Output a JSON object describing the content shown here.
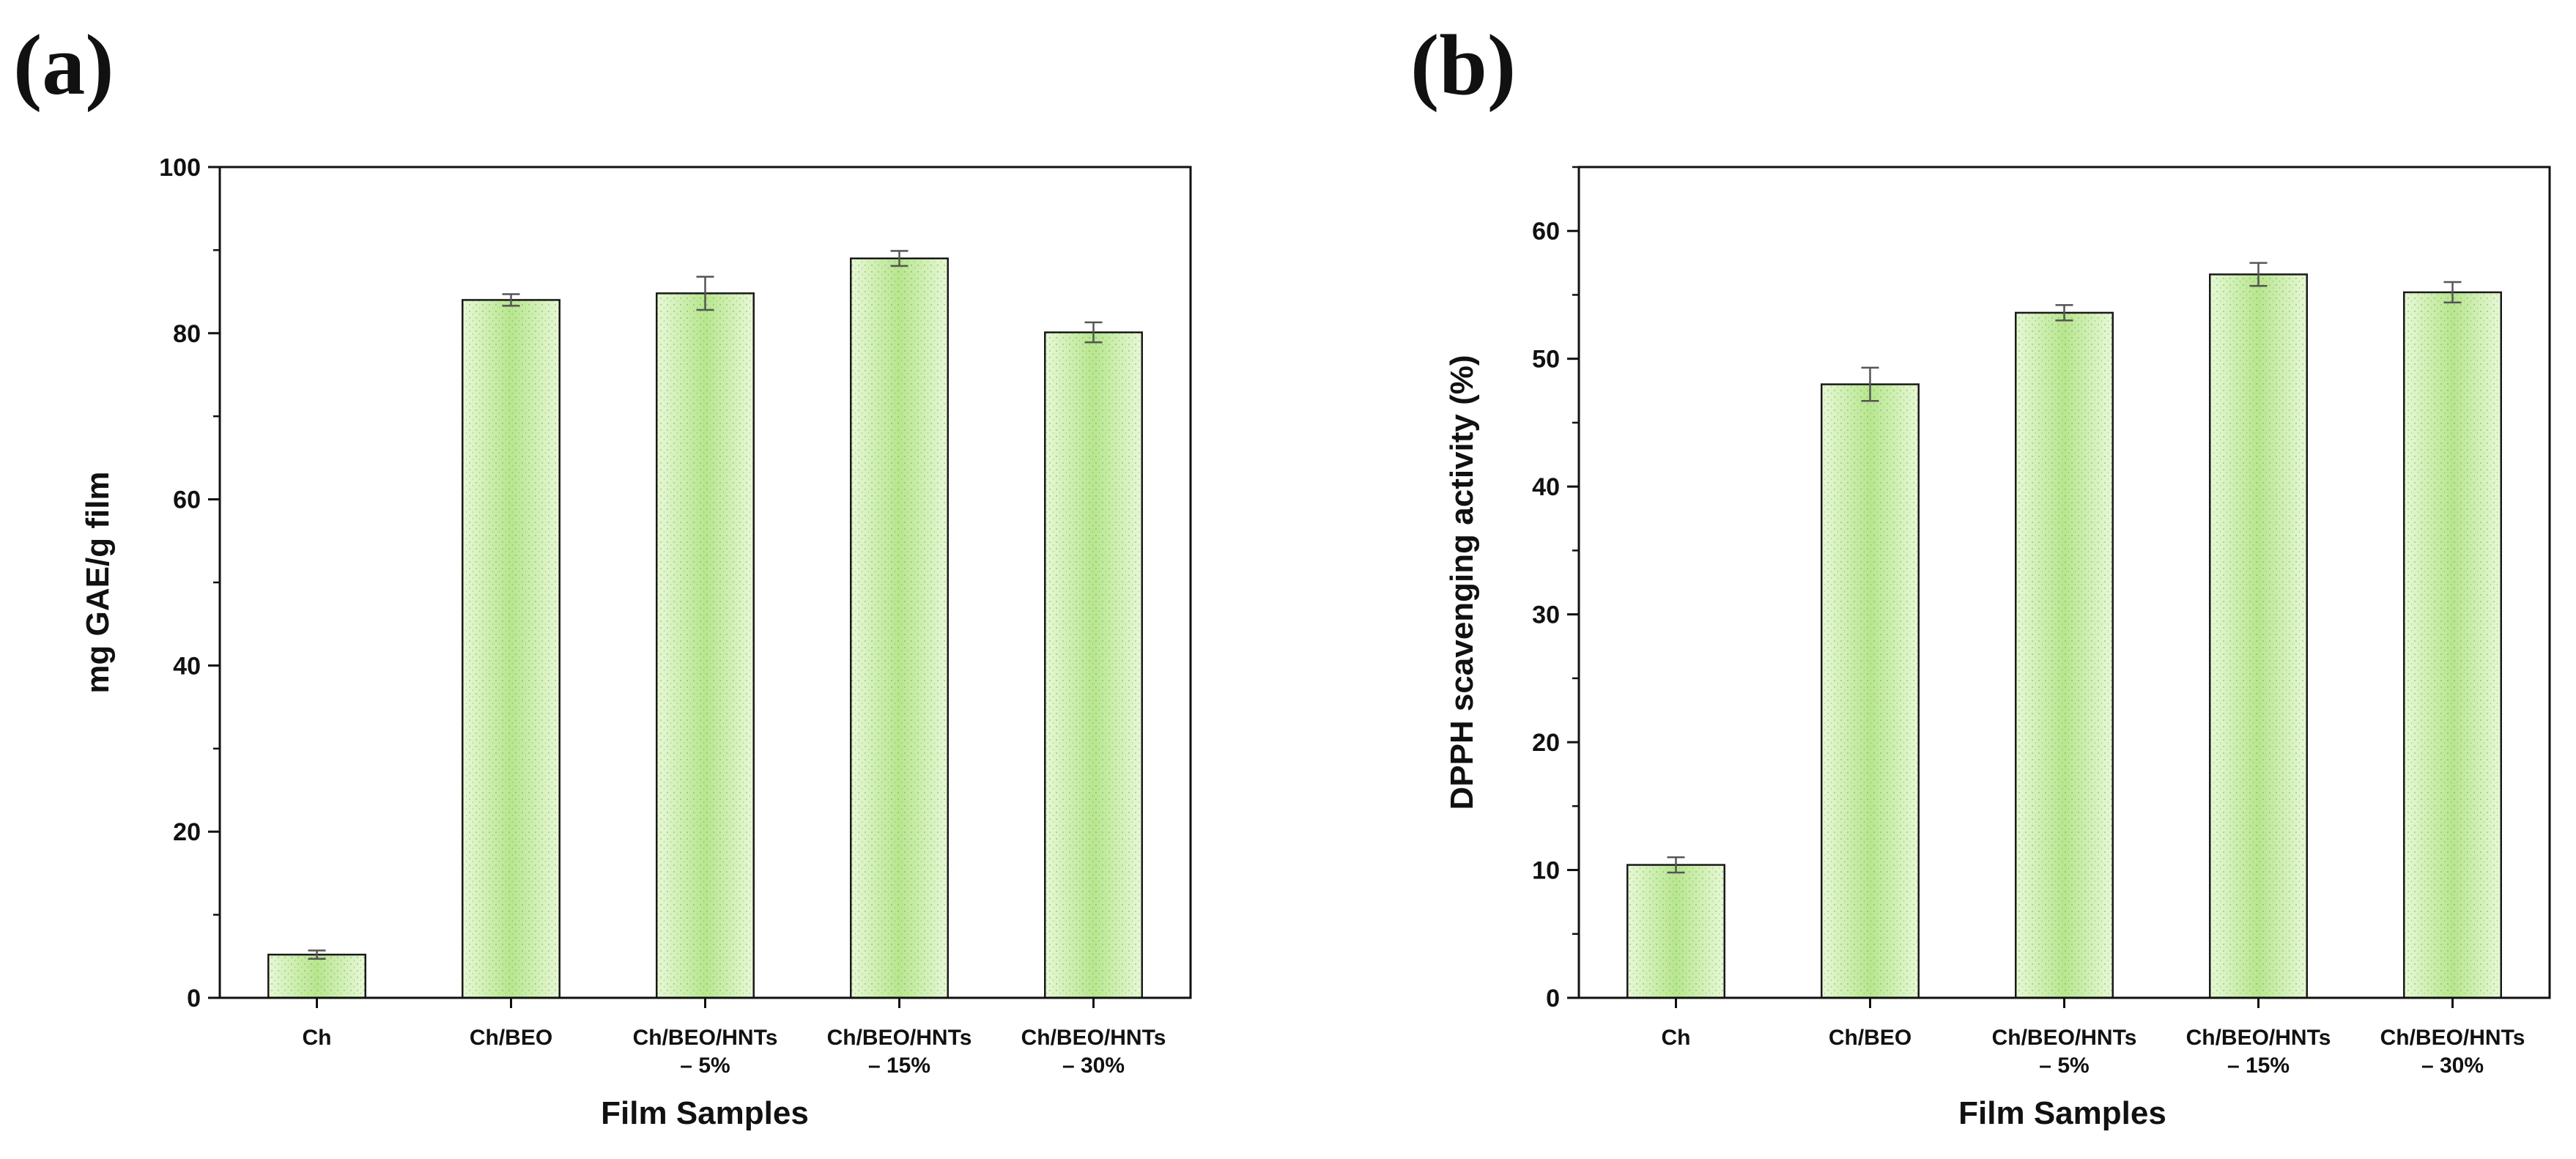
{
  "panels": [
    {
      "label": "(a)",
      "chart_data": {
        "type": "bar",
        "title": "",
        "xlabel": "Film Samples",
        "ylabel": "mg GAE/g film",
        "categories": [
          "Ch",
          "Ch/BEO",
          "Ch/BEO/HNTs – 5%",
          "Ch/BEO/HNTs – 15%",
          "Ch/BEO/HNTs – 30%"
        ],
        "category_lines": [
          [
            "Ch"
          ],
          [
            "Ch/BEO"
          ],
          [
            "Ch/BEO/HNTs",
            "– 5%"
          ],
          [
            "Ch/BEO/HNTs",
            "– 15%"
          ],
          [
            "Ch/BEO/HNTs",
            "– 30%"
          ]
        ],
        "values": [
          5.2,
          84.0,
          84.8,
          89.0,
          80.1
        ],
        "errors": [
          0.5,
          0.7,
          2.0,
          0.9,
          1.2
        ],
        "ylim": [
          0,
          100
        ],
        "yticks": [
          0,
          20,
          40,
          60,
          80,
          100
        ],
        "ytick_labels": [
          "0",
          "20",
          "40",
          "60",
          "80",
          "100"
        ],
        "grid": false,
        "bar_color": "#b8e68f"
      }
    },
    {
      "label": "(b)",
      "chart_data": {
        "type": "bar",
        "title": "",
        "xlabel": "Film Samples",
        "ylabel": "DPPH scavenging activity (%)",
        "categories": [
          "Ch",
          "Ch/BEO",
          "Ch/BEO/HNTs – 5%",
          "Ch/BEO/HNTs – 15%",
          "Ch/BEO/HNTs – 30%"
        ],
        "category_lines": [
          [
            "Ch"
          ],
          [
            "Ch/BEO"
          ],
          [
            "Ch/BEO/HNTs",
            "– 5%"
          ],
          [
            "Ch/BEO/HNTs",
            "– 15%"
          ],
          [
            "Ch/BEO/HNTs",
            "– 30%"
          ]
        ],
        "values": [
          10.4,
          48.0,
          53.6,
          56.6,
          55.2
        ],
        "errors": [
          0.6,
          1.3,
          0.6,
          0.9,
          0.8
        ],
        "ylim": [
          0,
          65
        ],
        "yticks": [
          0,
          10,
          20,
          30,
          40,
          50,
          60
        ],
        "ytick_labels": [
          "0",
          "10",
          "20",
          "30",
          "40",
          "50",
          "60"
        ],
        "grid": false,
        "bar_color": "#b8e68f"
      }
    }
  ],
  "colors": {
    "bar_edge": "#1a1a1a",
    "error_bar": "#555555",
    "bar_light": "#e7f8d6"
  }
}
